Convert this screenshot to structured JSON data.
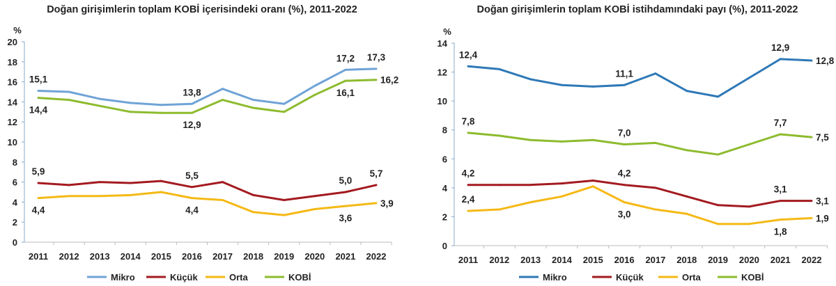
{
  "chart_data": [
    {
      "type": "line",
      "title": "Doğan girişimlerin toplam KOBİ içerisindeki oranı (%), 2011-2022",
      "ylabel": "%",
      "ylim": [
        0,
        20
      ],
      "yticks": [
        0,
        2,
        4,
        6,
        8,
        10,
        12,
        14,
        16,
        18,
        20
      ],
      "legend": "bottom",
      "grid": false,
      "categories": [
        "2011",
        "2012",
        "2013",
        "2014",
        "2015",
        "2016",
        "2017",
        "2018",
        "2019",
        "2020",
        "2021",
        "2022"
      ],
      "series": [
        {
          "name": "Mikro",
          "color": "#6fa3d6",
          "values": [
            15.1,
            15.0,
            14.3,
            13.9,
            13.7,
            13.8,
            15.3,
            14.2,
            13.8,
            15.6,
            17.2,
            17.3
          ],
          "labels": {
            "0": "15,1",
            "5": "13,8",
            "10": "17,2",
            "11": "17,3"
          }
        },
        {
          "name": "Küçük",
          "color": "#a31a1f",
          "values": [
            5.9,
            5.7,
            6.0,
            5.9,
            6.1,
            5.5,
            6.0,
            4.7,
            4.2,
            4.6,
            5.0,
            5.7
          ],
          "labels": {
            "0": "5,9",
            "5": "5,5",
            "10": "5,0",
            "11": "5,7"
          }
        },
        {
          "name": "Orta",
          "color": "#f5b915",
          "values": [
            4.4,
            4.6,
            4.6,
            4.7,
            5.0,
            4.4,
            4.2,
            3.0,
            2.7,
            3.3,
            3.6,
            3.9
          ],
          "labels": {
            "0": "4,4",
            "5": "4,4",
            "10": "3,6",
            "11": "3,9"
          }
        },
        {
          "name": "KOBİ",
          "color": "#8dbb2e",
          "values": [
            14.4,
            14.2,
            13.6,
            13.0,
            12.9,
            12.9,
            14.2,
            13.4,
            13.0,
            14.7,
            16.1,
            16.2
          ],
          "labels": {
            "0": "14,4",
            "5": "12,9",
            "10": "16,1",
            "11": "16,2"
          }
        }
      ]
    },
    {
      "type": "line",
      "title": "Doğan girişimlerin toplam KOBİ istihdamındaki payı (%), 2011-2022",
      "ylabel": "%",
      "ylim": [
        0,
        14
      ],
      "yticks": [
        0,
        2,
        4,
        6,
        8,
        10,
        12,
        14
      ],
      "legend": "bottom",
      "grid": false,
      "categories": [
        "2011",
        "2012",
        "2013",
        "2014",
        "2015",
        "2016",
        "2017",
        "2018",
        "2019",
        "2020",
        "2021",
        "2022"
      ],
      "series": [
        {
          "name": "Mikro",
          "color": "#2e78b7",
          "values": [
            12.4,
            12.2,
            11.5,
            11.1,
            11.0,
            11.1,
            11.9,
            10.7,
            10.3,
            11.6,
            12.9,
            12.8
          ],
          "labels": {
            "0": "12,4",
            "5": "11,1",
            "10": "12,9",
            "11": "12,8"
          }
        },
        {
          "name": "Küçük",
          "color": "#a31a1f",
          "values": [
            4.2,
            4.2,
            4.2,
            4.3,
            4.5,
            4.2,
            4.0,
            3.4,
            2.8,
            2.7,
            3.1,
            3.1
          ],
          "labels": {
            "0": "4,2",
            "5": "4,2",
            "10": "3,1",
            "11": "3,1"
          }
        },
        {
          "name": "Orta",
          "color": "#f5b915",
          "values": [
            2.4,
            2.5,
            3.0,
            3.4,
            4.1,
            3.0,
            2.5,
            2.2,
            1.5,
            1.5,
            1.8,
            1.9
          ],
          "labels": {
            "0": "2,4",
            "5": "3,0",
            "10": "1,8",
            "11": "1,9"
          }
        },
        {
          "name": "KOBİ",
          "color": "#8dbb2e",
          "values": [
            7.8,
            7.6,
            7.3,
            7.2,
            7.3,
            7.0,
            7.1,
            6.6,
            6.3,
            7.0,
            7.7,
            7.5
          ],
          "labels": {
            "0": "7,8",
            "5": "7,0",
            "10": "7,7",
            "11": "7,5"
          }
        }
      ]
    }
  ]
}
